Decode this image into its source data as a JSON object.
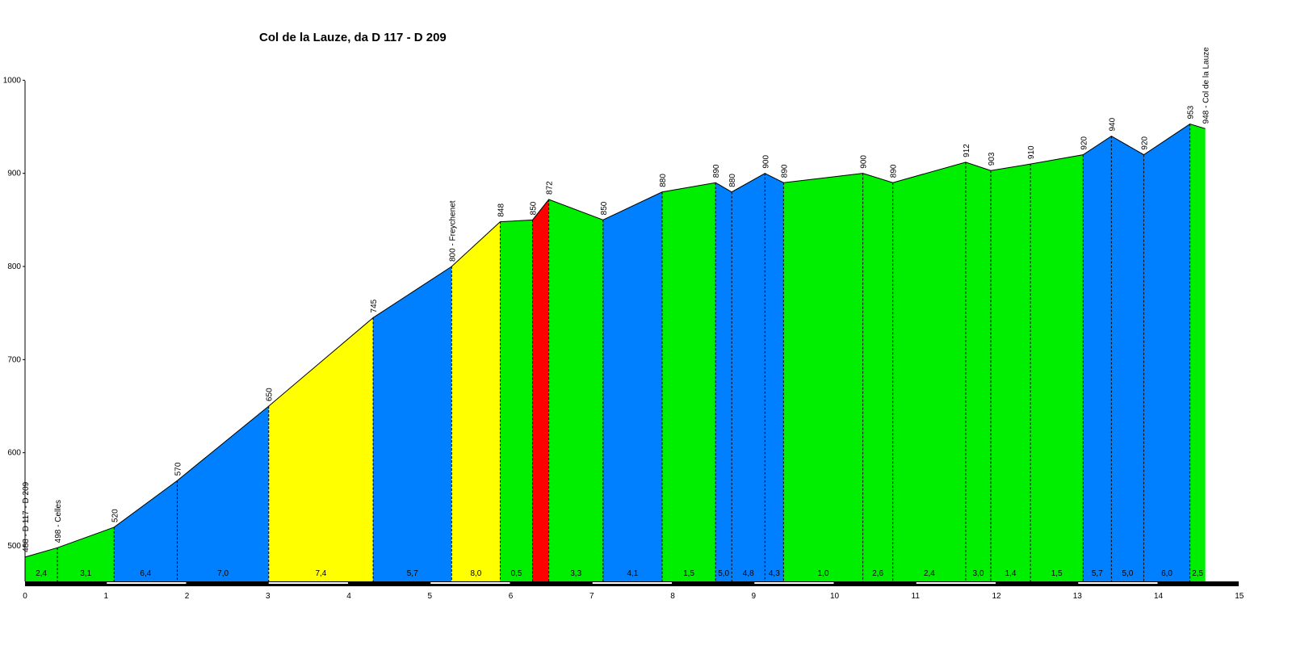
{
  "chart_data": {
    "type": "area",
    "title": "Col de la Lauze, da D 117 - D 209",
    "xlabel": "",
    "ylabel": "",
    "xlim": [
      0,
      15
    ],
    "ylim": [
      460,
      1000
    ],
    "x_ticks": [
      "0",
      "1",
      "2",
      "3",
      "4",
      "5",
      "6",
      "7",
      "8",
      "9",
      "10",
      "11",
      "12",
      "13",
      "14",
      "15"
    ],
    "y_ticks": [
      500,
      600,
      700,
      800,
      900,
      1000
    ],
    "grid": false,
    "colors": {
      "green": "#00ee00",
      "blue": "#0080ff",
      "yellow": "#ffff00",
      "red": "#ff0000",
      "axis": "#000000"
    },
    "profile": [
      {
        "x": 0.0,
        "y": 488,
        "label": "488 - D 117 - D 209"
      },
      {
        "x": 0.4,
        "y": 498,
        "label": "498 - Celles"
      },
      {
        "x": 1.1,
        "y": 520,
        "label": "520"
      },
      {
        "x": 1.88,
        "y": 570,
        "label": "570"
      },
      {
        "x": 3.01,
        "y": 650,
        "label": "650"
      },
      {
        "x": 4.3,
        "y": 745,
        "label": "745"
      },
      {
        "x": 5.27,
        "y": 800,
        "label": "800 - Freychenet"
      },
      {
        "x": 5.87,
        "y": 848,
        "label": "848"
      },
      {
        "x": 6.27,
        "y": 850,
        "label": "850"
      },
      {
        "x": 6.47,
        "y": 872,
        "label": "872"
      },
      {
        "x": 7.14,
        "y": 850,
        "label": "850"
      },
      {
        "x": 7.87,
        "y": 880,
        "label": "880"
      },
      {
        "x": 8.53,
        "y": 890,
        "label": "890"
      },
      {
        "x": 8.73,
        "y": 880,
        "label": "880"
      },
      {
        "x": 9.14,
        "y": 900,
        "label": "900"
      },
      {
        "x": 9.37,
        "y": 890,
        "label": "890"
      },
      {
        "x": 10.35,
        "y": 900,
        "label": "900"
      },
      {
        "x": 10.72,
        "y": 890,
        "label": "890"
      },
      {
        "x": 11.62,
        "y": 912,
        "label": "912"
      },
      {
        "x": 11.93,
        "y": 903,
        "label": "903"
      },
      {
        "x": 12.42,
        "y": 910,
        "label": "910"
      },
      {
        "x": 13.07,
        "y": 920,
        "label": "920"
      },
      {
        "x": 13.42,
        "y": 940,
        "label": "940"
      },
      {
        "x": 13.82,
        "y": 920,
        "label": "920"
      },
      {
        "x": 14.39,
        "y": 953,
        "label": "953"
      },
      {
        "x": 14.58,
        "y": 948,
        "label": "948 - Col de la Lauze"
      }
    ],
    "segments": [
      {
        "gradient": "2,4",
        "color": "green"
      },
      {
        "gradient": "3,1",
        "color": "green"
      },
      {
        "gradient": "6,4",
        "color": "blue"
      },
      {
        "gradient": "7,0",
        "color": "blue"
      },
      {
        "gradient": "7,4",
        "color": "yellow"
      },
      {
        "gradient": "5,7",
        "color": "blue"
      },
      {
        "gradient": "8,0",
        "color": "yellow"
      },
      {
        "gradient": "0,5",
        "color": "green"
      },
      {
        "gradient": "",
        "color": "red"
      },
      {
        "gradient": "3,3",
        "color": "green"
      },
      {
        "gradient": "4,1",
        "color": "blue"
      },
      {
        "gradient": "1,5",
        "color": "green"
      },
      {
        "gradient": "5,0",
        "color": "blue"
      },
      {
        "gradient": "4,8",
        "color": "blue"
      },
      {
        "gradient": "4,3",
        "color": "blue"
      },
      {
        "gradient": "1,0",
        "color": "green"
      },
      {
        "gradient": "2,6",
        "color": "green"
      },
      {
        "gradient": "2,4",
        "color": "green"
      },
      {
        "gradient": "3,0",
        "color": "green"
      },
      {
        "gradient": "1,4",
        "color": "green"
      },
      {
        "gradient": "1,5",
        "color": "green"
      },
      {
        "gradient": "5,7",
        "color": "blue"
      },
      {
        "gradient": "5,0",
        "color": "blue"
      },
      {
        "gradient": "6,0",
        "color": "blue"
      },
      {
        "gradient": "2,5",
        "color": "green"
      }
    ]
  }
}
